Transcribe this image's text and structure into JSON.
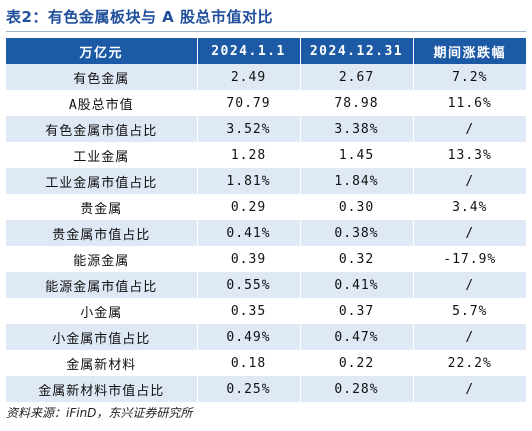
{
  "title": "表2：有色金属板块与 A 股总市值对比",
  "table": {
    "headers": [
      "万亿元",
      "2024.1.1",
      "2024.12.31",
      "期间涨跌幅"
    ],
    "rows": [
      [
        "有色金属",
        "2.49",
        "2.67",
        "7.2%"
      ],
      [
        "A股总市值",
        "70.79",
        "78.98",
        "11.6%"
      ],
      [
        "有色金属市值占比",
        "3.52%",
        "3.38%",
        "/"
      ],
      [
        "工业金属",
        "1.28",
        "1.45",
        "13.3%"
      ],
      [
        "工业金属市值占比",
        "1.81%",
        "1.84%",
        "/"
      ],
      [
        "贵金属",
        "0.29",
        "0.30",
        "3.4%"
      ],
      [
        "贵金属市值占比",
        "0.41%",
        "0.38%",
        "/"
      ],
      [
        "能源金属",
        "0.39",
        "0.32",
        "-17.9%"
      ],
      [
        "能源金属市值占比",
        "0.55%",
        "0.41%",
        "/"
      ],
      [
        "小金属",
        "0.35",
        "0.37",
        "5.7%"
      ],
      [
        "小金属市值占比",
        "0.49%",
        "0.47%",
        "/"
      ],
      [
        "金属新材料",
        "0.18",
        "0.22",
        "22.2%"
      ],
      [
        "金属新材料市值占比",
        "0.25%",
        "0.28%",
        "/"
      ]
    ]
  },
  "source": "资料来源：iFinD，东兴证券研究所",
  "colors": {
    "header_bg": "#1d5aa6",
    "stripe_bg": "#dfe8f5",
    "title_color": "#1f4e9a"
  }
}
